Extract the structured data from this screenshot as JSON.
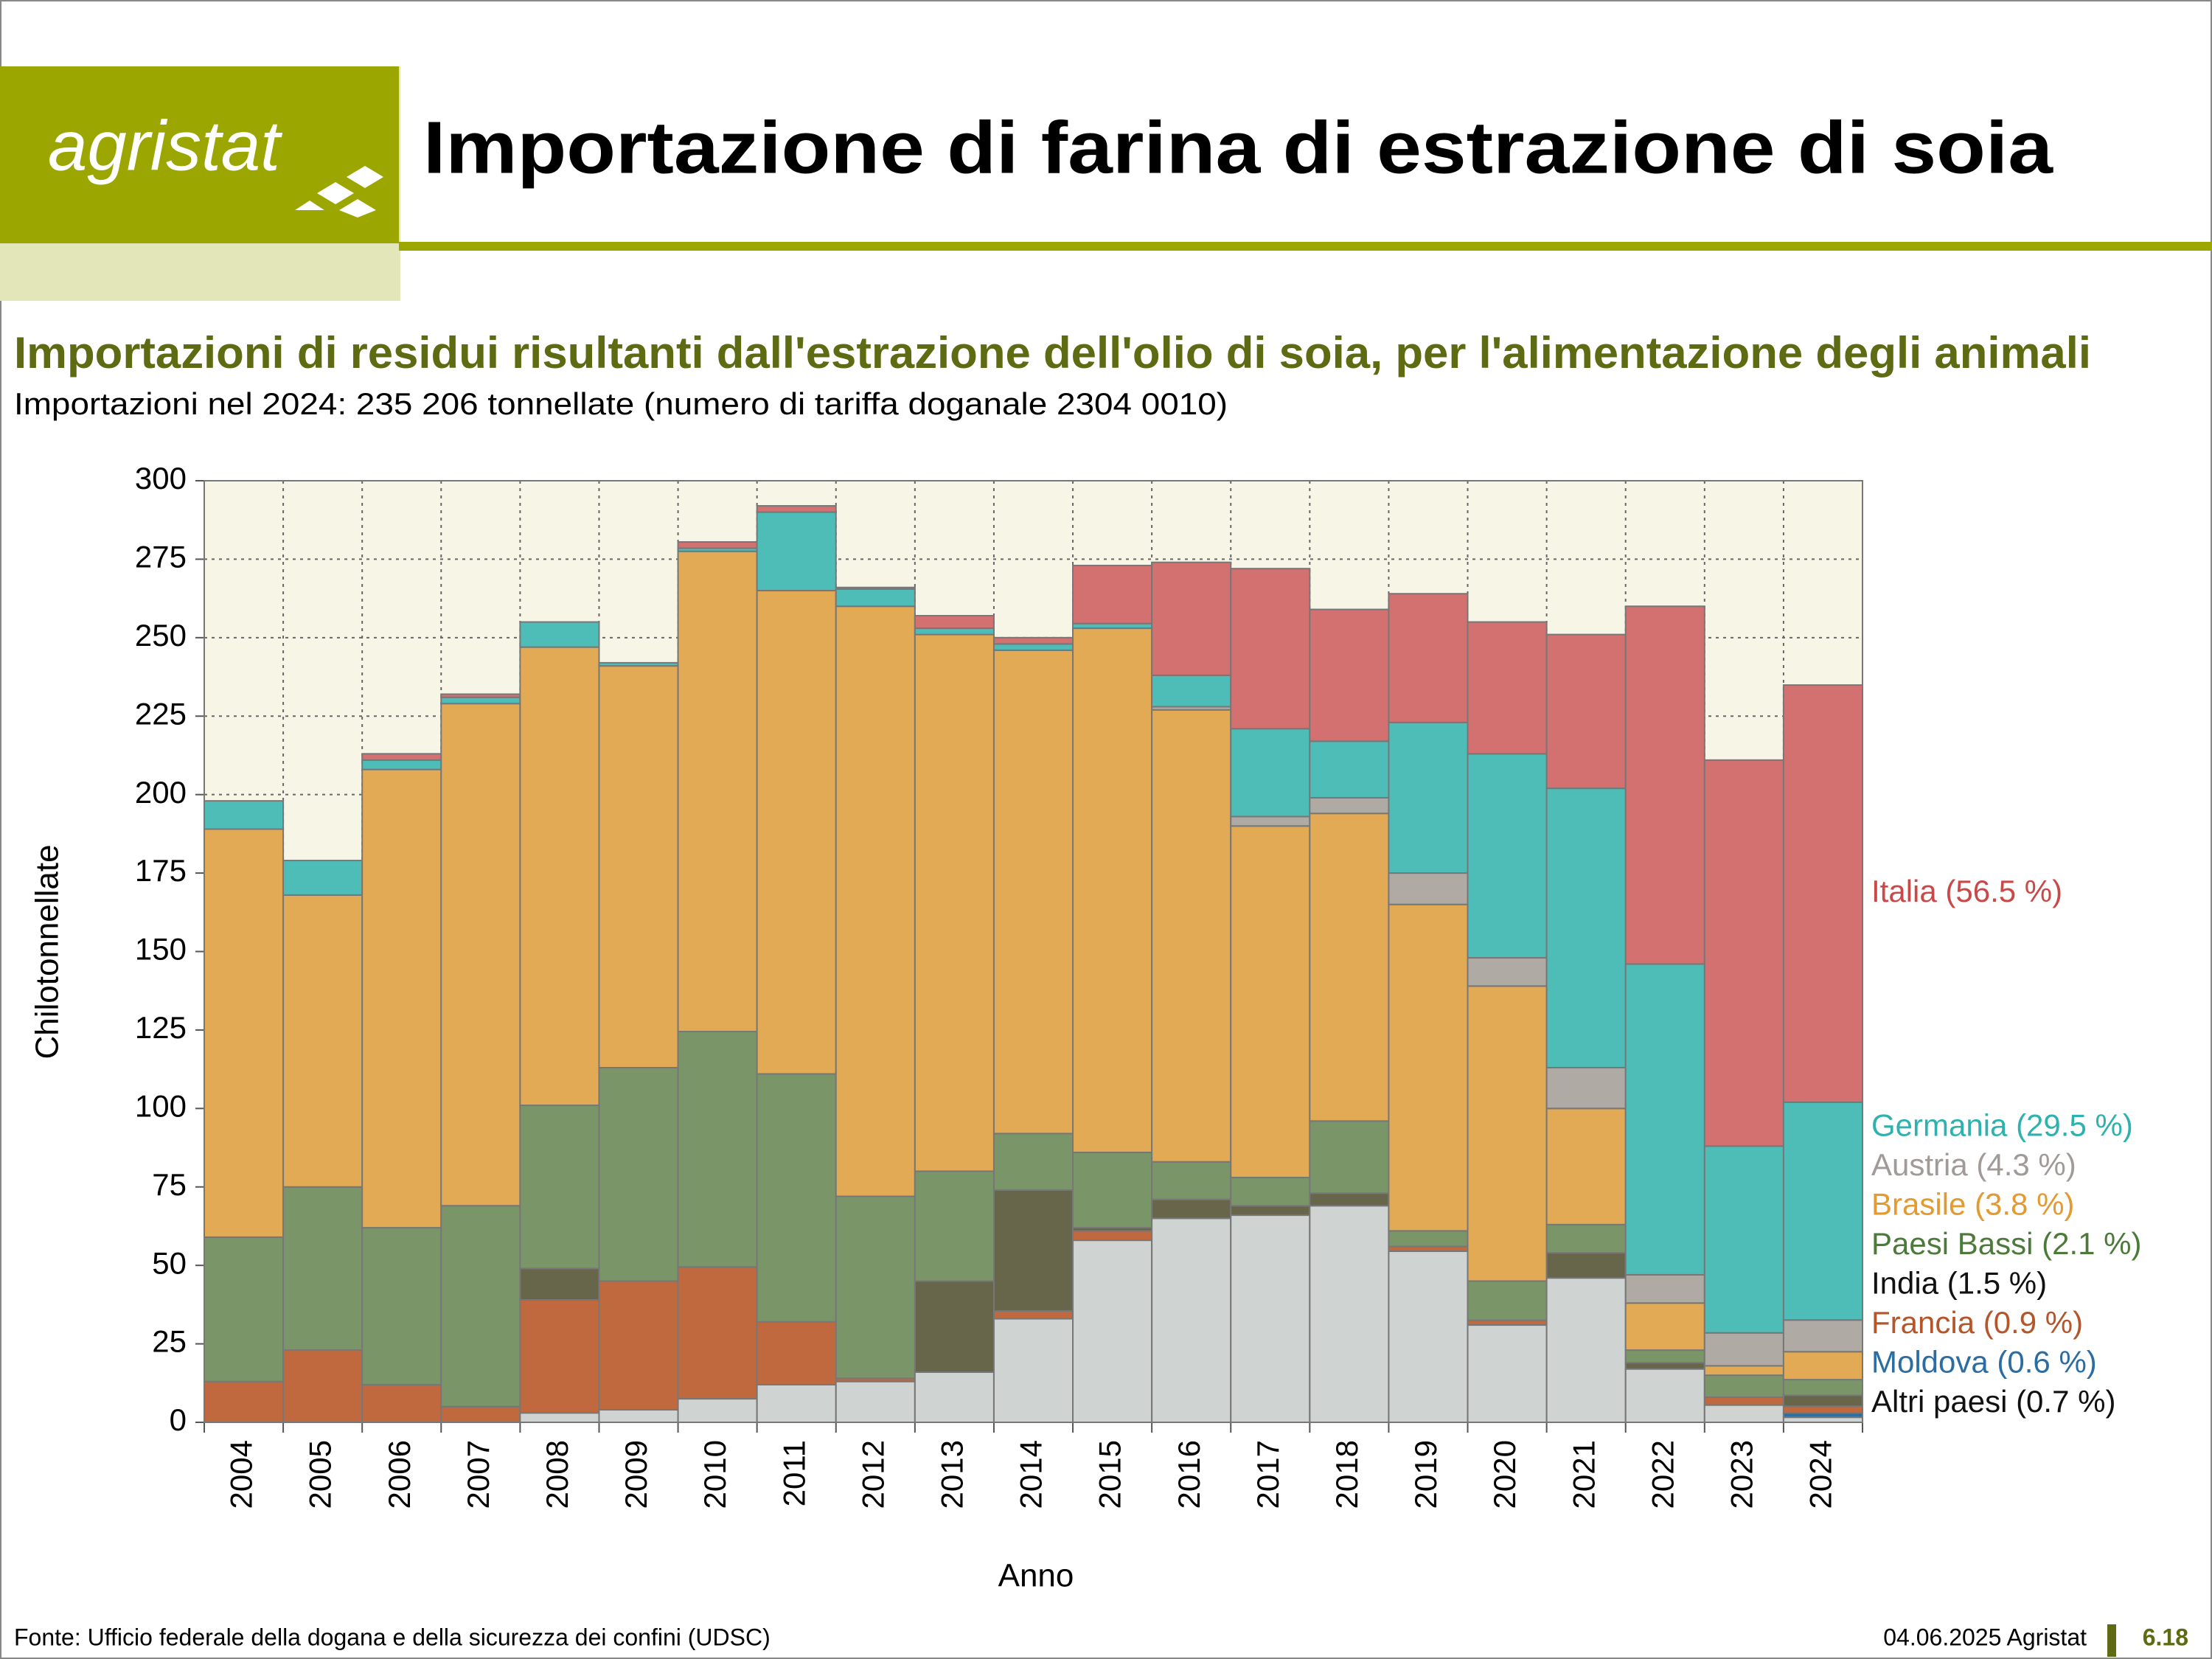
{
  "header": {
    "logo": "agristat",
    "title": "Importazione di farina di estrazione di soia"
  },
  "chart_data": {
    "type": "stacked_bar",
    "title": "Importazioni di residui risultanti dall'estrazione dell'olio di soia, per l'alimentazione degli animali",
    "subtitle": "Importazioni nel 2024: 235 206 tonnellate (numero di tariffa doganale 2304 0010)",
    "x_label": "Anno",
    "y_label": "Chilotonnellate",
    "categories": [
      "2004",
      "2005",
      "2006",
      "2007",
      "2008",
      "2009",
      "2010",
      "2011",
      "2012",
      "2013",
      "2014",
      "2015",
      "2016",
      "2017",
      "2018",
      "2019",
      "2020",
      "2021",
      "2022",
      "2023",
      "2024"
    ],
    "ylim": [
      0,
      300
    ],
    "yticks": [
      0,
      25,
      50,
      75,
      100,
      125,
      150,
      175,
      200,
      225,
      250,
      275,
      300
    ],
    "grid": true,
    "legend": "right",
    "series": [
      {
        "name": "Altri paesi (0.7 %)",
        "color": "#cfd3d1",
        "label_color": "#111111",
        "values": [
          0,
          0,
          0,
          0,
          3,
          4,
          7.5,
          12,
          13,
          16,
          33,
          58,
          65,
          66,
          69,
          54.5,
          31,
          46,
          17,
          5.5,
          1.6
        ]
      },
      {
        "name": "Moldova (0.6 %)",
        "color": "#2f6ea0",
        "label_color": "#2b6ca3",
        "values": [
          0,
          0,
          0,
          0,
          0,
          0,
          0,
          0,
          0,
          0,
          0,
          0,
          0,
          0,
          0,
          0,
          0,
          0,
          0,
          0,
          1.4
        ]
      },
      {
        "name": "Francia (0.9 %)",
        "color": "#c0693f",
        "label_color": "#b5552a",
        "values": [
          13,
          23,
          12,
          5,
          36,
          41,
          42,
          20,
          1,
          0,
          2.5,
          3,
          0,
          0,
          0,
          1.5,
          1.5,
          0,
          0,
          2.5,
          2.1
        ]
      },
      {
        "name": "India (1.5 %)",
        "color": "#67654a",
        "label_color": "#111111",
        "values": [
          0,
          0,
          0,
          0,
          10,
          0,
          0,
          0,
          0,
          29,
          38.5,
          1,
          6,
          3,
          4,
          0,
          0,
          8,
          2,
          0,
          3.5
        ]
      },
      {
        "name": "Paesi Bassi (2.1 %)",
        "color": "#7a9669",
        "label_color": "#4b7a3a",
        "values": [
          46,
          52,
          50,
          64,
          52,
          68,
          75,
          79,
          58,
          35,
          18,
          24,
          12,
          9,
          23,
          5,
          12.5,
          9,
          4,
          7,
          5
        ]
      },
      {
        "name": "Brasile (3.8 %)",
        "color": "#e3aa55",
        "label_color": "#e39a30",
        "values": [
          130,
          93,
          146,
          160,
          146,
          128,
          153,
          154,
          188,
          171,
          154,
          167,
          144,
          112,
          98,
          104,
          94,
          37,
          15,
          3,
          8.9
        ]
      },
      {
        "name": "Austria (4.3 %)",
        "color": "#b0aaa5",
        "label_color": "#a09a98",
        "values": [
          0,
          0,
          0,
          0,
          0,
          0,
          0,
          0,
          0,
          0,
          0,
          0,
          1,
          3,
          5,
          10,
          9,
          13,
          9,
          10.5,
          10.1
        ]
      },
      {
        "name": "Germania (29.5 %)",
        "color": "#4fbdb7",
        "label_color": "#2fb2ae",
        "values": [
          9,
          11,
          3,
          2,
          8,
          1,
          1,
          25,
          5.5,
          2,
          2,
          1.5,
          10,
          28,
          18,
          48,
          65,
          89,
          99,
          59.5,
          69.4
        ]
      },
      {
        "name": "Italia (56.5 %)",
        "color": "#d27170",
        "label_color": "#c94848",
        "values": [
          0,
          0,
          2,
          1,
          0,
          0,
          2,
          2,
          0.5,
          4,
          2,
          18.5,
          36,
          51,
          42,
          41,
          42,
          49,
          114,
          123,
          132.9
        ]
      }
    ]
  },
  "footer": {
    "source": "Fonte: Ufficio federale della dogana e della sicurezza dei confini (UDSC)",
    "date": "04.06.2025 Agristat",
    "page": "6.18"
  }
}
